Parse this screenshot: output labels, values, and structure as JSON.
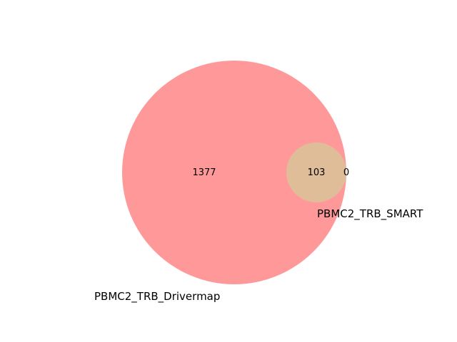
{
  "venn": {
    "sets": [
      {
        "name": "PBMC2_TRB_Drivermap",
        "color": "#ff9999"
      },
      {
        "name": "PBMC2_TRB_SMART",
        "color": "#e0bd99"
      }
    ],
    "counts": {
      "only_drivermap": "1377",
      "overlap": "103",
      "only_smart": "0"
    }
  }
}
